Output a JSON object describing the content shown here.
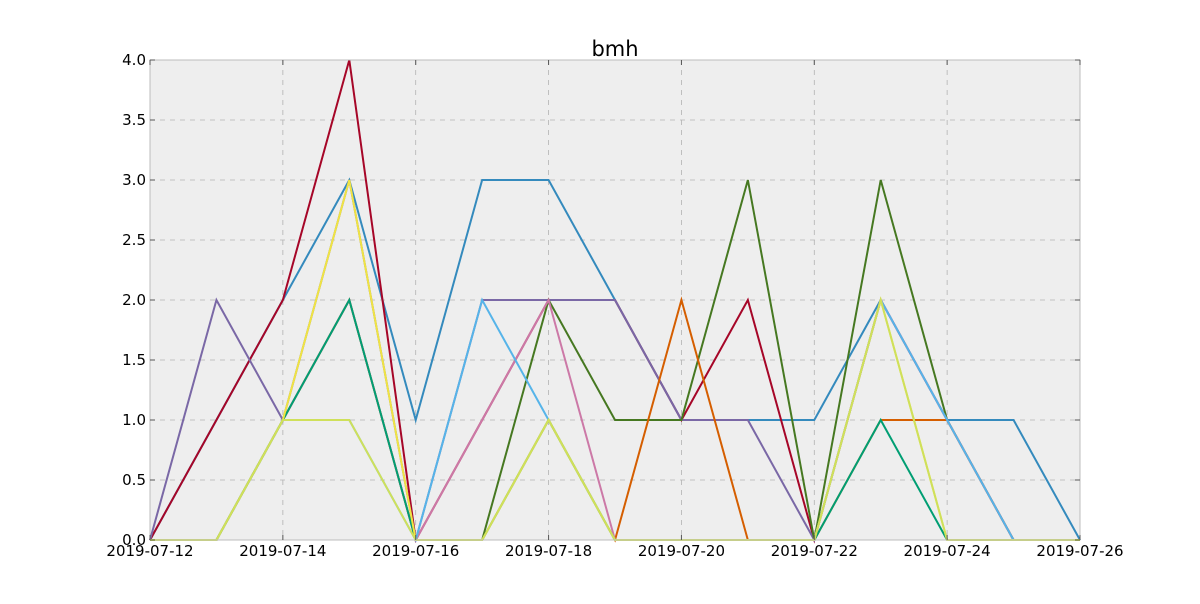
{
  "chart_data": {
    "type": "line",
    "title": "bmh",
    "xlabel": "",
    "ylabel": "",
    "grid": true,
    "legend": "none",
    "x": [
      "2019-07-12",
      "2019-07-13",
      "2019-07-14",
      "2019-07-15",
      "2019-07-16",
      "2019-07-17",
      "2019-07-18",
      "2019-07-19",
      "2019-07-20",
      "2019-07-21",
      "2019-07-22",
      "2019-07-23",
      "2019-07-24",
      "2019-07-25",
      "2019-07-26"
    ],
    "xlim": [
      "2019-07-12",
      "2019-07-26"
    ],
    "ylim": [
      0,
      4
    ],
    "x_ticks": [
      "2019-07-12",
      "2019-07-14",
      "2019-07-16",
      "2019-07-18",
      "2019-07-20",
      "2019-07-22",
      "2019-07-24",
      "2019-07-26"
    ],
    "y_ticks": [
      "0.0",
      "0.5",
      "1.0",
      "1.5",
      "2.0",
      "2.5",
      "3.0",
      "3.5",
      "4.0"
    ],
    "series": [
      {
        "color": "#348ABD",
        "values": [
          0,
          1,
          2,
          3,
          1,
          3,
          3,
          2,
          1,
          1,
          1,
          2,
          1,
          1,
          0
        ]
      },
      {
        "color": "#A60628",
        "values": [
          0,
          1,
          2,
          4,
          0,
          1,
          2,
          2,
          1,
          2,
          0,
          2,
          1,
          0,
          0
        ]
      },
      {
        "color": "#7A68A6",
        "values": [
          0,
          2,
          1,
          3,
          0,
          2,
          2,
          2,
          1,
          1,
          0,
          2,
          1,
          0,
          0
        ]
      },
      {
        "color": "#467821",
        "values": [
          0,
          0,
          1,
          2,
          0,
          0,
          2,
          1,
          1,
          3,
          0,
          3,
          1,
          0,
          0
        ]
      },
      {
        "color": "#D55E00",
        "values": [
          0,
          0,
          1,
          2,
          0,
          0,
          1,
          0,
          2,
          0,
          0,
          1,
          1,
          0,
          0
        ]
      },
      {
        "color": "#CC79A7",
        "values": [
          0,
          0,
          1,
          2,
          0,
          1,
          2,
          0,
          0,
          0,
          0,
          2,
          1,
          0,
          0
        ]
      },
      {
        "color": "#56B4E9",
        "values": [
          0,
          0,
          1,
          1,
          0,
          2,
          1,
          0,
          0,
          0,
          0,
          2,
          1,
          0,
          0
        ]
      },
      {
        "color": "#009E73",
        "values": [
          0,
          0,
          1,
          2,
          0,
          0,
          1,
          0,
          0,
          0,
          0,
          1,
          0,
          0,
          0
        ]
      },
      {
        "color": "#F0E442",
        "values": [
          0,
          0,
          1,
          3,
          0,
          0,
          1,
          0,
          0,
          0,
          0,
          2,
          0,
          0,
          0
        ]
      },
      {
        "color": "#CFE05A",
        "values": [
          0,
          0,
          1,
          1,
          0,
          0,
          1,
          0,
          0,
          0,
          0,
          2,
          0,
          0,
          0
        ]
      }
    ]
  }
}
